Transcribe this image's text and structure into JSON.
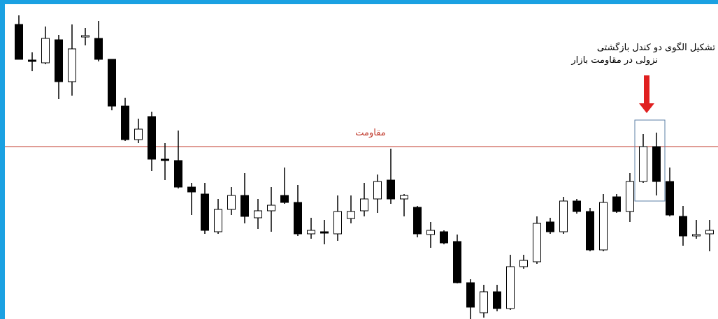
{
  "chart_data": {
    "type": "candlestick",
    "ylim": [
      0,
      457
    ],
    "open": [
      422,
      371,
      367,
      400,
      340,
      404,
      402,
      372,
      305,
      257,
      290,
      229,
      227,
      189,
      179,
      125,
      157,
      177,
      145,
      155,
      177,
      167,
      122,
      125,
      122,
      144,
      155,
      172,
      199,
      172,
      160,
      121,
      125,
      111,
      52,
      9,
      39,
      15,
      75,
      82,
      139,
      125,
      169,
      154,
      99,
      175,
      154,
      197,
      247,
      197,
      147,
      119,
      122
    ],
    "high": [
      435,
      382,
      419,
      407,
      422,
      417,
      427,
      372,
      317,
      287,
      297,
      252,
      270,
      195,
      195,
      172,
      189,
      209,
      172,
      189,
      217,
      192,
      145,
      142,
      177,
      177,
      195,
      207,
      244,
      179,
      162,
      139,
      127,
      121,
      57,
      49,
      49,
      92,
      92,
      147,
      145,
      175,
      172,
      159,
      179,
      179,
      209,
      265,
      267,
      217,
      162,
      142,
      142
    ],
    "low": [
      372,
      355,
      365,
      315,
      320,
      392,
      369,
      299,
      255,
      252,
      212,
      199,
      187,
      149,
      122,
      122,
      149,
      137,
      129,
      125,
      165,
      119,
      115,
      107,
      112,
      137,
      147,
      152,
      165,
      147,
      117,
      102,
      107,
      51,
      0,
      2,
      11,
      13,
      72,
      79,
      122,
      122,
      151,
      97,
      97,
      152,
      139,
      195,
      177,
      147,
      105,
      115,
      97
    ],
    "close": [
      372,
      369,
      402,
      340,
      387,
      406,
      372,
      305,
      257,
      272,
      229,
      227,
      189,
      182,
      127,
      157,
      177,
      147,
      155,
      163,
      167,
      122,
      127,
      123,
      154,
      154,
      172,
      197,
      172,
      177,
      122,
      127,
      109,
      52,
      17,
      39,
      15,
      75,
      84,
      137,
      125,
      169,
      154,
      99,
      167,
      154,
      197,
      247,
      197,
      149,
      119,
      121,
      127
    ],
    "up_color": "#ffffff",
    "down_color": "#000000",
    "resistance": {
      "value": 247,
      "label": "مقاومت",
      "color": "#c0392b"
    },
    "annotation": [
      "تشکیل الگوی دو کندل بازگشتی",
      "نزولی در مقاومت بازار"
    ]
  }
}
